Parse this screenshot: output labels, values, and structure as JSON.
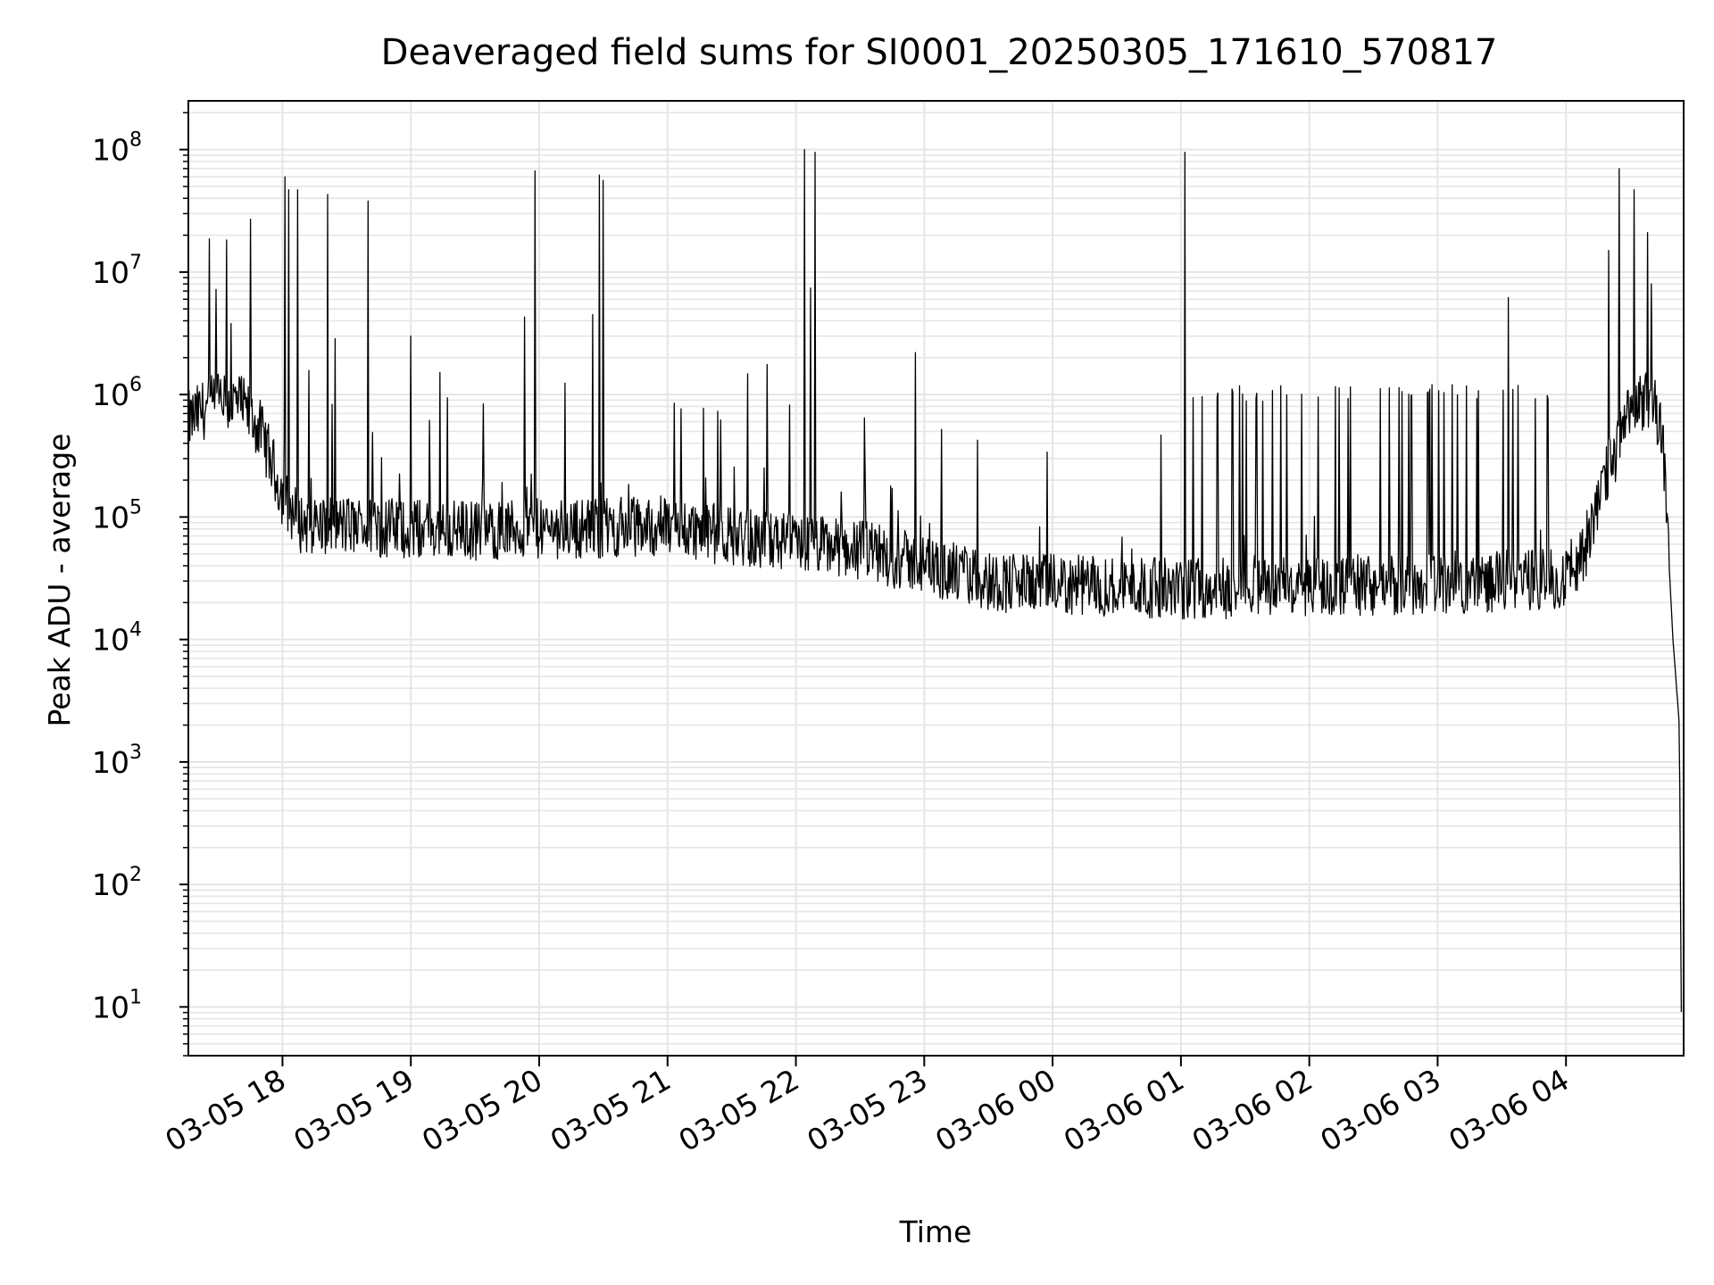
{
  "chart_data": {
    "type": "line",
    "title": "Deaveraged field sums for SI0001_20250305_171610_570817",
    "xlabel": "Time",
    "ylabel": "Peak ADU - average",
    "yscale": "log",
    "ylim": [
      4,
      250000000
    ],
    "xlim": [
      "2025-03-05 17:16",
      "2025-03-06 04:55"
    ],
    "grid": true,
    "line_color": "#000000",
    "grid_color": "#e5e5e5",
    "x_ticks": [
      {
        "t": "2025-03-05 18:00",
        "label": "03-05 18"
      },
      {
        "t": "2025-03-05 19:00",
        "label": "03-05 19"
      },
      {
        "t": "2025-03-05 20:00",
        "label": "03-05 20"
      },
      {
        "t": "2025-03-05 21:00",
        "label": "03-05 21"
      },
      {
        "t": "2025-03-05 22:00",
        "label": "03-05 22"
      },
      {
        "t": "2025-03-05 23:00",
        "label": "03-05 23"
      },
      {
        "t": "2025-03-06 00:00",
        "label": "03-06 00"
      },
      {
        "t": "2025-03-06 01:00",
        "label": "03-06 01"
      },
      {
        "t": "2025-03-06 02:00",
        "label": "03-06 02"
      },
      {
        "t": "2025-03-06 03:00",
        "label": "03-06 03"
      },
      {
        "t": "2025-03-06 04:00",
        "label": "03-06 04"
      }
    ],
    "y_ticks": [
      {
        "value": 10,
        "base": "10",
        "exp": "1"
      },
      {
        "value": 100,
        "base": "10",
        "exp": "2"
      },
      {
        "value": 1000,
        "base": "10",
        "exp": "3"
      },
      {
        "value": 10000,
        "base": "10",
        "exp": "4"
      },
      {
        "value": 100000,
        "base": "10",
        "exp": "5"
      },
      {
        "value": 1000000,
        "base": "10",
        "exp": "6"
      },
      {
        "value": 10000000,
        "base": "10",
        "exp": "7"
      },
      {
        "value": 100000000,
        "base": "10",
        "exp": "8"
      }
    ],
    "series": [
      {
        "baseline": [
          [
            "2025-03-05 17:16",
            600000
          ],
          [
            "2025-03-05 17:25",
            800000
          ],
          [
            "2025-03-05 17:40",
            850000
          ],
          [
            "2025-03-05 17:50",
            500000
          ],
          [
            "2025-03-05 18:00",
            150000
          ],
          [
            "2025-03-05 18:08",
            90000
          ],
          [
            "2025-03-05 18:30",
            85000
          ],
          [
            "2025-03-05 19:00",
            80000
          ],
          [
            "2025-03-05 19:30",
            78000
          ],
          [
            "2025-03-05 20:00",
            80000
          ],
          [
            "2025-03-05 20:30",
            82000
          ],
          [
            "2025-03-05 21:00",
            85000
          ],
          [
            "2025-03-05 21:30",
            70000
          ],
          [
            "2025-03-05 22:00",
            60000
          ],
          [
            "2025-03-05 22:30",
            55000
          ],
          [
            "2025-03-05 23:00",
            40000
          ],
          [
            "2025-03-05 23:30",
            30000
          ],
          [
            "2025-03-06 00:00",
            28000
          ],
          [
            "2025-03-06 00:30",
            27000
          ],
          [
            "2025-03-06 01:00",
            26000
          ],
          [
            "2025-03-06 01:30",
            26000
          ],
          [
            "2025-03-06 02:00",
            27000
          ],
          [
            "2025-03-06 02:30",
            28000
          ],
          [
            "2025-03-06 03:00",
            28000
          ],
          [
            "2025-03-06 03:30",
            30000
          ],
          [
            "2025-03-06 04:00",
            32000
          ],
          [
            "2025-03-06 04:10",
            60000
          ],
          [
            "2025-03-06 04:20",
            250000
          ],
          [
            "2025-03-06 04:30",
            700000
          ],
          [
            "2025-03-06 04:40",
            1000000
          ],
          [
            "2025-03-06 04:45",
            500000
          ],
          [
            "2025-03-06 04:50",
            10000
          ],
          [
            "2025-03-06 04:53",
            2000
          ],
          [
            "2025-03-06 04:54",
            5
          ]
        ],
        "spikes": [
          [
            "2025-03-05 17:45",
            27000000
          ],
          [
            "2025-03-05 17:36",
            3800000
          ],
          [
            "2025-03-05 18:01",
            60000000
          ],
          [
            "2025-03-05 18:03",
            47000000
          ],
          [
            "2025-03-05 18:07",
            47000000
          ],
          [
            "2025-03-05 18:21",
            43000000
          ],
          [
            "2025-03-05 18:40",
            38000000
          ],
          [
            "2025-03-05 19:00",
            3000000
          ],
          [
            "2025-03-05 19:53",
            4300000
          ],
          [
            "2025-03-05 19:58",
            67000000
          ],
          [
            "2025-03-05 20:25",
            4500000
          ],
          [
            "2025-03-05 20:28",
            62000000
          ],
          [
            "2025-03-05 20:30",
            56000000
          ],
          [
            "2025-03-05 22:04",
            100000000
          ],
          [
            "2025-03-05 22:07",
            7400000
          ],
          [
            "2025-03-05 22:09",
            95000000
          ],
          [
            "2025-03-05 22:56",
            2200000
          ],
          [
            "2025-03-06 01:02",
            95000000
          ],
          [
            "2025-03-06 03:33",
            6200000
          ],
          [
            "2025-03-06 04:20",
            15000000
          ],
          [
            "2025-03-06 04:25",
            70000000
          ],
          [
            "2025-03-06 04:32",
            47000000
          ],
          [
            "2025-03-06 04:38",
            21000000
          ],
          [
            "2025-03-06 04:40",
            8000000
          ]
        ]
      }
    ]
  }
}
